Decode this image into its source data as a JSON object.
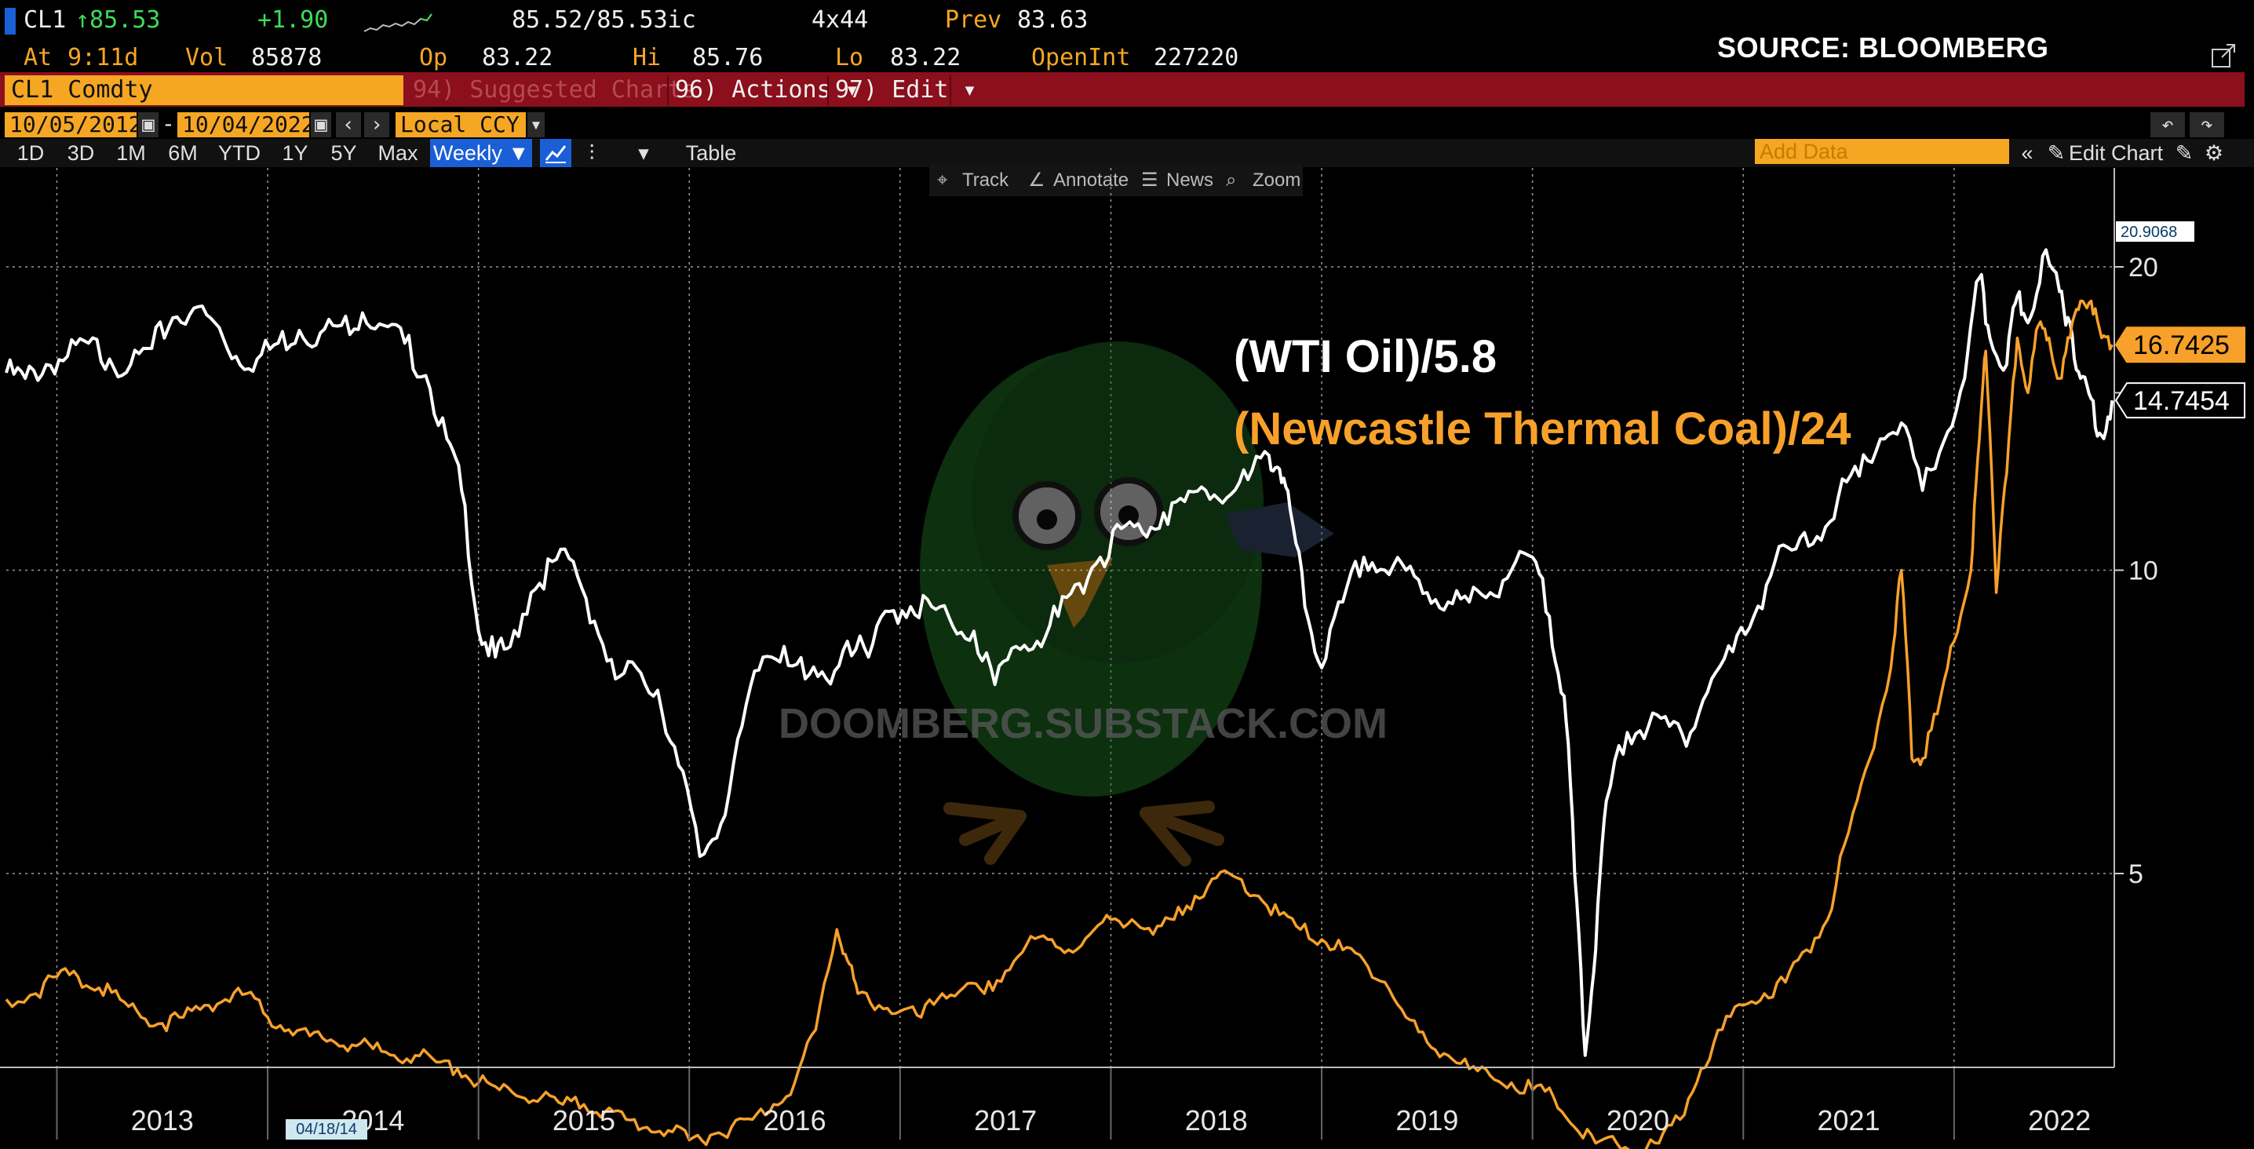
{
  "quote": {
    "ticker": "CL1",
    "last": "↑85.53",
    "change": "+1.90",
    "bid_ask": "85.52/85.53ic",
    "size": "4x44",
    "prev_label": "Prev",
    "prev": "83.63",
    "at_label": "At",
    "time": "9:11d",
    "vol_label": "Vol",
    "vol": "85878",
    "op_label": "Op",
    "op": "83.22",
    "hi_label": "Hi",
    "hi": "85.76",
    "lo_label": "Lo",
    "lo": "83.22",
    "oi_label": "OpenInt",
    "oi": "227220"
  },
  "source_text": "SOURCE: BLOOMBERG",
  "command": {
    "security": "CL1 Comdty",
    "suggested": "94) Suggested Charts",
    "actions": "96) Actions ▾",
    "edit": "97) Edit ▾"
  },
  "dates": {
    "start": "10/05/2012",
    "end": "10/04/2022",
    "dash": "-",
    "currency": "Local CCY"
  },
  "periods": [
    "1D",
    "3D",
    "1M",
    "6M",
    "YTD",
    "1Y",
    "5Y",
    "Max"
  ],
  "frequency": "Weekly ▼",
  "table_label": "Table",
  "add_data": "Add Data",
  "edit_chart": "Edit Chart",
  "chart_tools": {
    "track": "Track",
    "annotate": "Annotate",
    "news": "News",
    "zoom": "Zoom"
  },
  "watermark": "DOOMBERG.SUBSTACK.COM",
  "cursor_date": "04/18/14",
  "colors": {
    "wti": "#ffffff",
    "coal": "#f7a12b",
    "accent": "#f5a623",
    "command_bar": "#8b0f1c",
    "background": "#000000"
  },
  "chart_data": {
    "type": "line",
    "title": "",
    "x_tick_labels": [
      "2013",
      "2014",
      "2015",
      "2016",
      "2017",
      "2018",
      "2019",
      "2020",
      "2021",
      "2022"
    ],
    "y_tick_labels": [
      "20",
      "10",
      "5"
    ],
    "ylim": [
      2.2,
      23
    ],
    "y_scale": "log",
    "grid": true,
    "max_label": "20.9068",
    "series": [
      {
        "name": "(WTI Oil)/5.8",
        "color": "#ffffff",
        "last_label": "14.7454",
        "x": [
          2012.76,
          2012.85,
          2012.95,
          2013.05,
          2013.15,
          2013.25,
          2013.35,
          2013.45,
          2013.55,
          2013.65,
          2013.75,
          2013.85,
          2013.95,
          2014.05,
          2014.15,
          2014.25,
          2014.35,
          2014.45,
          2014.55,
          2014.65,
          2014.75,
          2014.85,
          2014.92,
          2015.0,
          2015.08,
          2015.15,
          2015.25,
          2015.35,
          2015.45,
          2015.55,
          2015.65,
          2015.75,
          2015.85,
          2015.95,
          2016.05,
          2016.15,
          2016.25,
          2016.35,
          2016.45,
          2016.55,
          2016.65,
          2016.75,
          2016.85,
          2016.95,
          2017.05,
          2017.15,
          2017.25,
          2017.35,
          2017.45,
          2017.55,
          2017.65,
          2017.75,
          2017.85,
          2017.95,
          2018.05,
          2018.15,
          2018.25,
          2018.35,
          2018.45,
          2018.55,
          2018.65,
          2018.75,
          2018.8,
          2018.85,
          2018.92,
          2019.0,
          2019.1,
          2019.2,
          2019.3,
          2019.4,
          2019.5,
          2019.6,
          2019.7,
          2019.8,
          2019.9,
          2020.0,
          2020.08,
          2020.15,
          2020.2,
          2020.25,
          2020.3,
          2020.35,
          2020.45,
          2020.55,
          2020.65,
          2020.75,
          2020.85,
          2020.95,
          2021.05,
          2021.15,
          2021.25,
          2021.35,
          2021.45,
          2021.55,
          2021.65,
          2021.75,
          2021.85,
          2021.95,
          2022.05,
          2022.12,
          2022.17,
          2022.25,
          2022.3,
          2022.35,
          2022.42,
          2022.5,
          2022.55,
          2022.6,
          2022.65,
          2022.7,
          2022.75
        ],
        "values": [
          15.7,
          15.5,
          16.0,
          16.3,
          16.8,
          16.2,
          16.0,
          16.6,
          17.8,
          18.2,
          17.6,
          16.3,
          16.2,
          16.8,
          17.3,
          17.2,
          17.5,
          18.0,
          17.5,
          16.8,
          15.6,
          13.5,
          12.0,
          8.7,
          8.2,
          8.4,
          9.5,
          10.2,
          10.2,
          8.9,
          7.8,
          8.0,
          7.6,
          6.4,
          5.2,
          5.6,
          7.0,
          8.2,
          8.4,
          7.8,
          7.8,
          8.5,
          8.2,
          9.1,
          9.2,
          9.2,
          8.8,
          8.7,
          7.7,
          8.4,
          8.5,
          9.0,
          9.7,
          10.3,
          11.0,
          10.9,
          11.4,
          11.7,
          12.0,
          11.8,
          12.3,
          13.0,
          12.6,
          11.5,
          9.2,
          8.0,
          9.3,
          10.3,
          10.0,
          10.0,
          9.5,
          9.3,
          9.3,
          9.5,
          10.0,
          10.3,
          9.0,
          7.5,
          5.0,
          3.3,
          4.2,
          5.9,
          6.9,
          7.0,
          7.0,
          6.9,
          7.8,
          8.3,
          9.0,
          10.2,
          10.5,
          10.8,
          11.8,
          12.4,
          13.5,
          14.0,
          12.0,
          13.4,
          15.5,
          19.5,
          17.0,
          16.0,
          18.7,
          17.6,
          20.5,
          18.9,
          17.6,
          15.5,
          14.8,
          13.6,
          14.74
        ]
      },
      {
        "name": "(Newcastle Thermal Coal)/24",
        "color": "#f7a12b",
        "last_label": "16.7425",
        "x": [
          2012.76,
          2012.9,
          2013.0,
          2013.1,
          2013.2,
          2013.3,
          2013.4,
          2013.5,
          2013.6,
          2013.7,
          2013.8,
          2013.9,
          2014.0,
          2014.1,
          2014.2,
          2014.3,
          2014.4,
          2014.5,
          2014.6,
          2014.7,
          2014.8,
          2014.9,
          2015.0,
          2015.1,
          2015.2,
          2015.3,
          2015.4,
          2015.5,
          2015.6,
          2015.7,
          2015.8,
          2015.9,
          2016.0,
          2016.1,
          2016.2,
          2016.3,
          2016.4,
          2016.5,
          2016.6,
          2016.7,
          2016.75,
          2016.8,
          2016.9,
          2017.0,
          2017.1,
          2017.2,
          2017.3,
          2017.4,
          2017.5,
          2017.6,
          2017.7,
          2017.8,
          2017.9,
          2018.0,
          2018.1,
          2018.2,
          2018.3,
          2018.4,
          2018.5,
          2018.6,
          2018.7,
          2018.8,
          2018.9,
          2019.0,
          2019.1,
          2019.2,
          2019.3,
          2019.4,
          2019.5,
          2019.6,
          2019.7,
          2019.8,
          2019.9,
          2020.0,
          2020.1,
          2020.2,
          2020.3,
          2020.4,
          2020.5,
          2020.6,
          2020.7,
          2020.8,
          2020.9,
          2021.0,
          2021.1,
          2021.2,
          2021.3,
          2021.4,
          2021.5,
          2021.6,
          2021.7,
          2021.75,
          2021.8,
          2021.85,
          2021.92,
          2022.0,
          2022.08,
          2022.12,
          2022.15,
          2022.2,
          2022.25,
          2022.3,
          2022.35,
          2022.4,
          2022.45,
          2022.5,
          2022.55,
          2022.6,
          2022.65,
          2022.7,
          2022.75
        ],
        "values": [
          3.75,
          3.8,
          3.95,
          3.95,
          3.85,
          3.75,
          3.6,
          3.55,
          3.6,
          3.7,
          3.75,
          3.8,
          3.6,
          3.5,
          3.45,
          3.42,
          3.38,
          3.35,
          3.3,
          3.3,
          3.25,
          3.2,
          3.1,
          3.05,
          3.0,
          3.0,
          2.95,
          2.95,
          2.9,
          2.85,
          2.8,
          2.78,
          2.72,
          2.75,
          2.8,
          2.85,
          2.95,
          3.1,
          3.5,
          4.4,
          4.1,
          3.8,
          3.7,
          3.65,
          3.6,
          3.8,
          3.85,
          3.8,
          4.0,
          4.25,
          4.3,
          4.2,
          4.35,
          4.5,
          4.5,
          4.35,
          4.5,
          4.75,
          4.95,
          4.95,
          4.75,
          4.55,
          4.4,
          4.3,
          4.2,
          4.1,
          3.9,
          3.6,
          3.4,
          3.3,
          3.2,
          3.15,
          3.1,
          3.05,
          3.0,
          2.8,
          2.7,
          2.7,
          2.65,
          2.7,
          2.85,
          3.2,
          3.5,
          3.7,
          3.8,
          3.9,
          4.2,
          4.5,
          5.5,
          6.5,
          8.0,
          10.0,
          6.5,
          6.5,
          7.2,
          8.5,
          10.0,
          13.5,
          16.5,
          9.5,
          12.5,
          17.0,
          15.0,
          17.5,
          17.0,
          15.5,
          17.0,
          18.5,
          18.5,
          17.0,
          16.74
        ]
      }
    ]
  }
}
